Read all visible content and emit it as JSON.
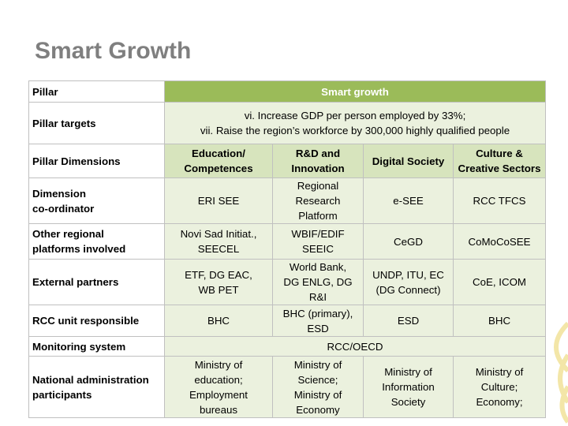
{
  "title": "Smart Growth",
  "table": {
    "header": {
      "label": [
        "Pillar"
      ],
      "value": [
        "Smart growth"
      ]
    },
    "targets": {
      "label": [
        "Pillar targets"
      ],
      "value": [
        "vi. Increase GDP per person employed by 33%;",
        "vii. Raise the region’s workforce by 300,000 highly qualified people"
      ]
    },
    "dimensions": {
      "label": [
        "Pillar Dimensions"
      ],
      "cells": [
        [
          "Education/",
          "Competences"
        ],
        [
          "R&D and",
          "Innovation"
        ],
        [
          "Digital Society"
        ],
        [
          "Culture &",
          "Creative Sectors"
        ]
      ]
    },
    "rows_a": [
      {
        "label": [
          "Dimension",
          "co-ordinator"
        ],
        "cells": [
          [
            "ERI SEE"
          ],
          [
            "Regional",
            "Research",
            "Platform"
          ],
          [
            "e-SEE"
          ],
          [
            "RCC TFCS"
          ]
        ]
      },
      {
        "label": [
          "Other regional",
          "platforms involved"
        ],
        "cells": [
          [
            "Novi Sad Initiat.,",
            "SEECEL"
          ],
          [
            "WBIF/EDIF",
            "SEEIC"
          ],
          [
            "CeGD"
          ],
          [
            "CoMoCoSEE"
          ]
        ]
      },
      {
        "label": [
          "External partners"
        ],
        "cells": [
          [
            "ETF, DG EAC,",
            "WB PET"
          ],
          [
            "World Bank,",
            "DG ENLG, DG R&I"
          ],
          [
            "UNDP, ITU, EC",
            "(DG Connect)"
          ],
          [
            "CoE, ICOM"
          ]
        ]
      },
      {
        "label": [
          "RCC unit responsible"
        ],
        "cells": [
          [
            "BHC"
          ],
          [
            "BHC (primary),",
            "ESD"
          ],
          [
            "ESD"
          ],
          [
            "BHC"
          ]
        ]
      }
    ],
    "monitoring": {
      "label": [
        "Monitoring system"
      ],
      "value": [
        "RCC/OECD"
      ]
    },
    "rows_b": [
      {
        "label": [
          "National administration",
          "participants"
        ],
        "cells": [
          [
            "Ministry of",
            "education;",
            "Employment",
            "bureaus"
          ],
          [
            "Ministry of",
            "Science;",
            "Ministry of",
            "Economy"
          ],
          [
            "Ministry of",
            "Information",
            "Society"
          ],
          [
            "Ministry of",
            "Culture;",
            "Economy;"
          ]
        ]
      }
    ]
  }
}
